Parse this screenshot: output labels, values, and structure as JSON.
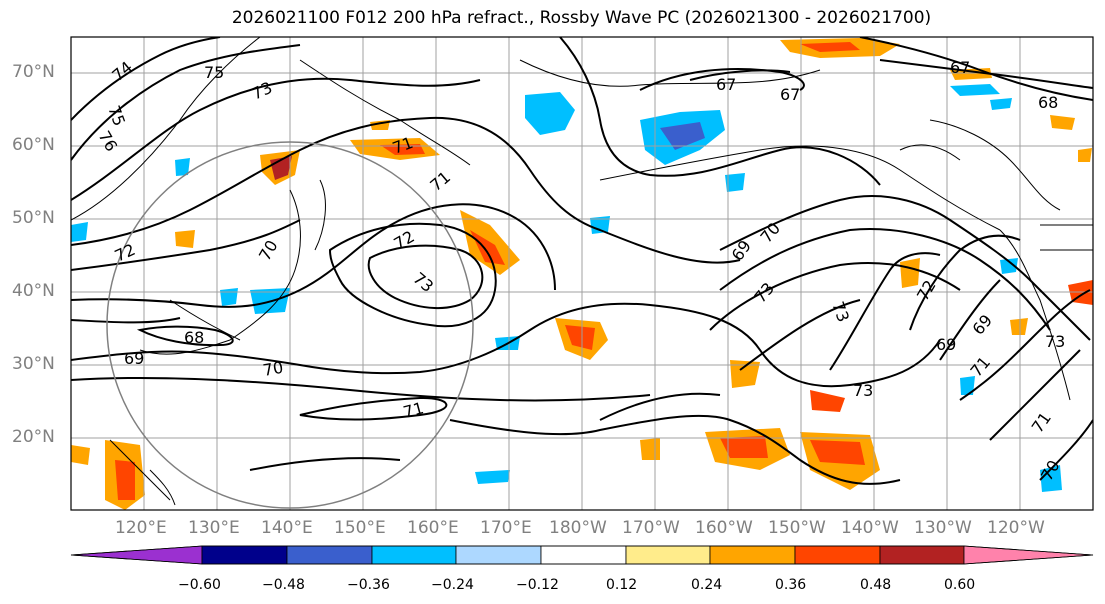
{
  "title": "2026021100 F012 200 hPa refract., Rossby Wave PC (2026021300 - 2026021700)",
  "latitude_labels": [
    "70°N",
    "60°N",
    "50°N",
    "40°N",
    "30°N",
    "20°N"
  ],
  "longitude_labels": [
    "120°E",
    "130°E",
    "140°E",
    "150°E",
    "160°E",
    "170°E",
    "180°W",
    "170°W",
    "160°W",
    "150°W",
    "140°W",
    "130°W",
    "120°W"
  ],
  "colorbar": {
    "tick_labels": [
      "−0.60",
      "−0.48",
      "−0.36",
      "−0.24",
      "−0.12",
      "0.12",
      "0.24",
      "0.36",
      "0.48",
      "0.60"
    ],
    "colors": [
      "#9b30d0",
      "#00008b",
      "#3a5fcd",
      "#00bfff",
      "#add8ff",
      "#ffffff",
      "#ffec8b",
      "#ffa500",
      "#ff4500",
      "#b22222",
      "#ff82ab"
    ]
  },
  "contour_labels": [
    "74",
    "75",
    "73",
    "75",
    "76",
    "72",
    "70",
    "71",
    "71",
    "72",
    "73",
    "68",
    "69",
    "70",
    "71",
    "67",
    "67",
    "67",
    "68",
    "69",
    "70",
    "73",
    "73",
    "73",
    "72",
    "69",
    "69",
    "71",
    "71",
    "73",
    "70"
  ]
}
